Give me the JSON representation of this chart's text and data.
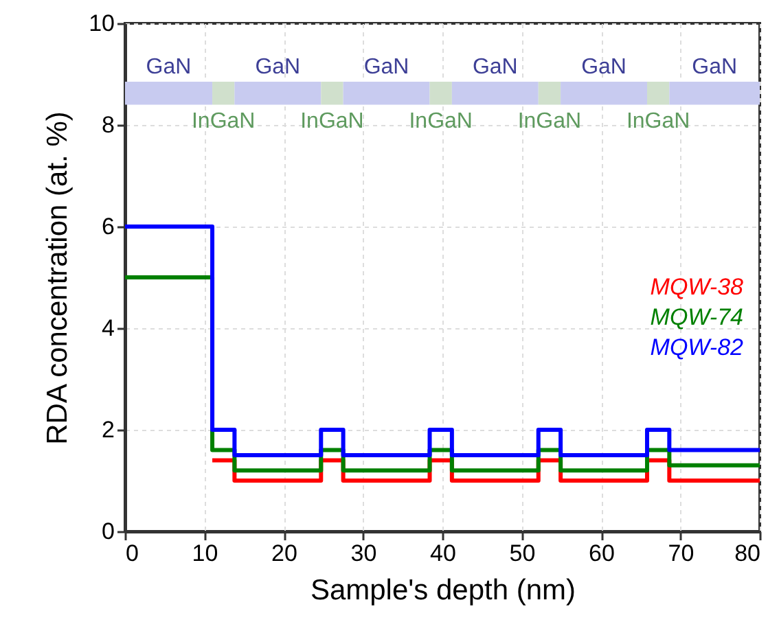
{
  "chart_data": {
    "type": "step",
    "xlabel": "Sample's depth (nm)",
    "ylabel": "RDA concentration (at. %)",
    "x": [
      0,
      11,
      13.8,
      24.7,
      27.5,
      38.4,
      41.2,
      52.1,
      54.9,
      65.8,
      68.6,
      80
    ],
    "series": [
      {
        "name": "MQW-38",
        "color": "#ff0000",
        "values": [
          null,
          1.4,
          1,
          1.4,
          1,
          1.4,
          1,
          1.4,
          1,
          1.4,
          1,
          1
        ]
      },
      {
        "name": "MQW-74",
        "color": "#008000",
        "values": [
          5,
          1.6,
          1.2,
          1.6,
          1.2,
          1.6,
          1.2,
          1.6,
          1.2,
          1.6,
          1.3,
          1.3
        ]
      },
      {
        "name": "MQW-82",
        "color": "#0000ff",
        "values": [
          6,
          2,
          1.5,
          2,
          1.5,
          2,
          1.5,
          2,
          1.5,
          2,
          1.6,
          1.6
        ]
      }
    ],
    "xlim": [
      0,
      80
    ],
    "xticks": [
      0,
      10,
      20,
      30,
      40,
      50,
      60,
      70,
      80
    ],
    "ylim": [
      0,
      10
    ],
    "yticks": [
      0,
      2,
      4,
      6,
      8,
      10
    ],
    "bands": [
      {
        "axis": "x",
        "from": 0,
        "to": 11,
        "label": "GaN",
        "color": "#c8cbf0"
      },
      {
        "axis": "x",
        "from": 11,
        "to": 13.8,
        "label": "InGaN",
        "color": "#d0e0cc"
      },
      {
        "axis": "x",
        "from": 13.8,
        "to": 24.7,
        "label": "GaN",
        "color": "#c8cbf0"
      },
      {
        "axis": "x",
        "from": 24.7,
        "to": 27.5,
        "label": "InGaN",
        "color": "#d0e0cc"
      },
      {
        "axis": "x",
        "from": 27.5,
        "to": 38.4,
        "label": "GaN",
        "color": "#c8cbf0"
      },
      {
        "axis": "x",
        "from": 38.4,
        "to": 41.2,
        "label": "InGaN",
        "color": "#d0e0cc"
      },
      {
        "axis": "x",
        "from": 41.2,
        "to": 52.1,
        "label": "GaN",
        "color": "#c8cbf0"
      },
      {
        "axis": "x",
        "from": 52.1,
        "to": 54.9,
        "label": "InGaN",
        "color": "#d0e0cc"
      },
      {
        "axis": "x",
        "from": 54.9,
        "to": 65.8,
        "label": "GaN",
        "color": "#c8cbf0"
      },
      {
        "axis": "x",
        "from": 65.8,
        "to": 68.6,
        "label": "InGaN",
        "color": "#d0e0cc"
      },
      {
        "axis": "x",
        "from": 68.6,
        "to": 80,
        "label": "GaN",
        "color": "#c8cbf0"
      }
    ],
    "grid": true,
    "legend": "right",
    "line_style": "solid"
  }
}
